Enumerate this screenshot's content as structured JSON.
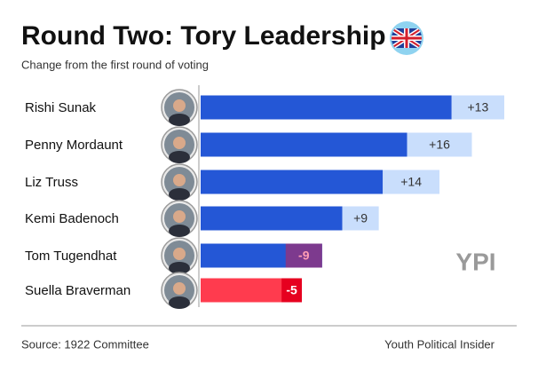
{
  "chart_data": {
    "type": "bar",
    "title": "Round Two: Tory Leadership",
    "subtitle": "Change from the first round of voting",
    "categories": [
      "Rishi Sunak",
      "Penny Mordaunt",
      "Liz Truss",
      "Kemi Badenoch",
      "Tom Tugendhat",
      "Suella Braverman"
    ],
    "base": [
      62,
      51,
      45,
      35,
      30,
      25
    ],
    "values": [
      13,
      16,
      14,
      9,
      -9,
      -5
    ],
    "value_labels": [
      "+13",
      "+16",
      "+14",
      "+9",
      "-9",
      "-5"
    ],
    "base_colors": [
      "#2457d6",
      "#2457d6",
      "#2457d6",
      "#2457d6",
      "#2457d6",
      "#ff3b4e"
    ],
    "change_colors": [
      "#c9defc",
      "#c9defc",
      "#c9defc",
      "#c9defc",
      "#7d3a8e",
      "#e6001f"
    ],
    "label_colors": [
      "#333333",
      "#333333",
      "#333333",
      "#333333",
      "#ff9db4",
      "#ffffff"
    ],
    "logo": "YPI",
    "source": "Source: 1922 Committee",
    "credit": "Youth Political Insider"
  }
}
